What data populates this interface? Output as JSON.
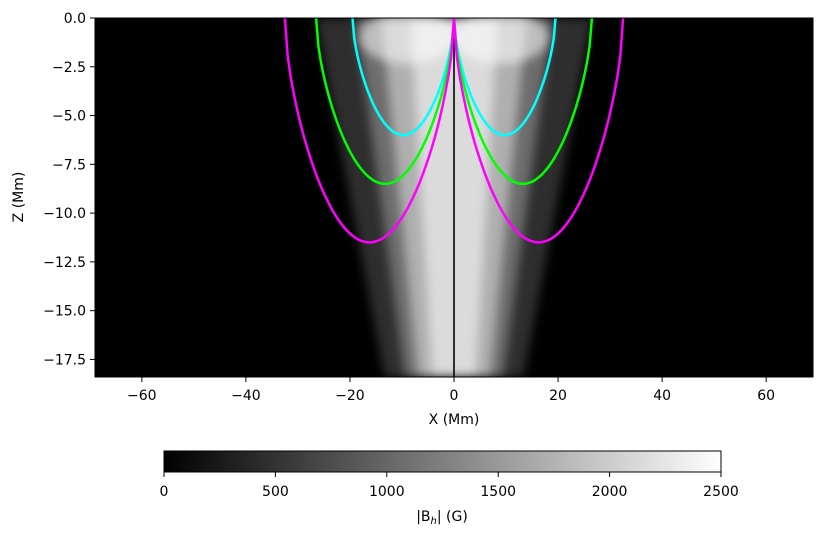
{
  "chart_data": [
    {
      "type": "heatmap",
      "title": "",
      "xlabel": "X (Mm)",
      "ylabel": "Z (Mm)",
      "xlim": [
        -69,
        69
      ],
      "ylim": [
        -18.4,
        0
      ],
      "x_ticks": [
        -60,
        -40,
        -20,
        0,
        20,
        40,
        60
      ],
      "x_tick_labels": [
        "−60",
        "−40",
        "−20",
        "0",
        "20",
        "40",
        "60"
      ],
      "y_ticks": [
        0,
        -2.5,
        -5,
        -7.5,
        -10,
        -12.5,
        -15,
        -17.5
      ],
      "y_tick_labels": [
        "0.0",
        "−2.5",
        "−5.0",
        "−7.5",
        "−10.0",
        "−12.5",
        "−15.0",
        "−17.5"
      ],
      "field": {
        "description_of_values": "horizontal field strength |B_h| in G, bright in a funnel centred at X = 0 with a thin dark seam at X = 0",
        "core_peak": 2400,
        "surface_half_width": 14,
        "bottom_half_width": 7
      },
      "series": [
        {
          "color": "#00ffff",
          "apex_depth": -6.0,
          "footpoints": [
            -19.5,
            19.5
          ]
        },
        {
          "color": "#00ff00",
          "apex_depth": -8.5,
          "footpoints": [
            -26.5,
            26.5
          ]
        },
        {
          "color": "#ff00ff",
          "apex_depth": -11.5,
          "footpoints": [
            -32.5,
            32.5
          ]
        }
      ],
      "grid": false
    },
    {
      "type": "colorbar",
      "label": "|B",
      "label_sub": "h",
      "label_tail": "| (G)",
      "range": [
        0,
        2500
      ],
      "ticks": [
        0,
        500,
        1000,
        1500,
        2000,
        2500
      ],
      "tick_labels": [
        "0",
        "500",
        "1000",
        "1500",
        "2000",
        "2500"
      ],
      "colormap": "gray"
    }
  ]
}
